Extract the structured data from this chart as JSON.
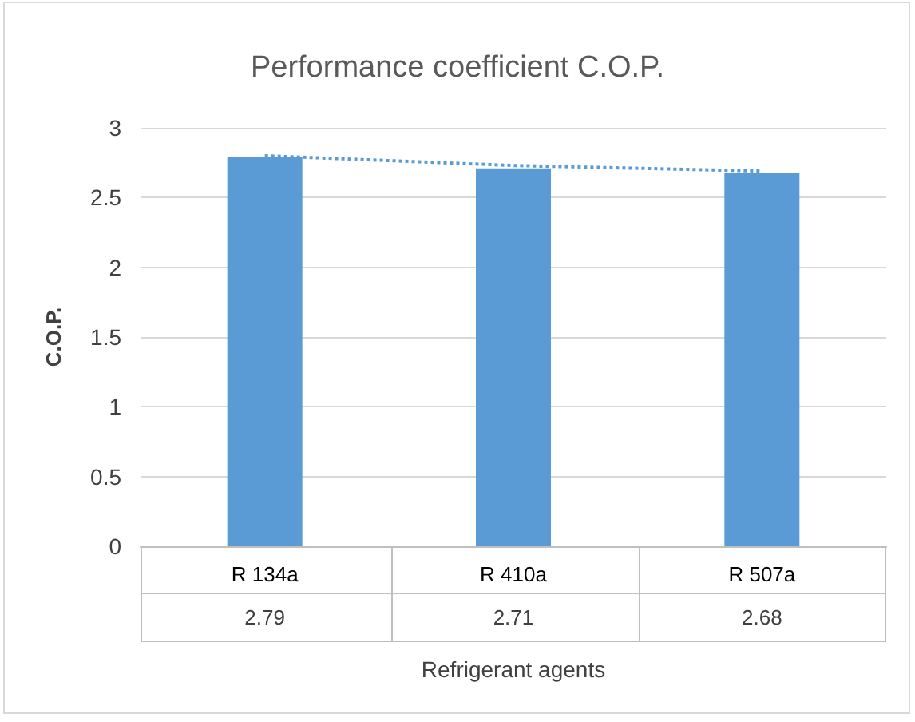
{
  "chart_data": {
    "type": "bar",
    "title": "Performance coefficient C.O.P.",
    "xlabel": "Refrigerant agents",
    "ylabel": "C.O.P.",
    "categories": [
      "R 134a",
      "R 410a",
      "R 507a"
    ],
    "series": [
      {
        "color": "#5b9bd5",
        "values": [
          2.79,
          2.71,
          2.68
        ],
        "value_labels": [
          "2.79",
          "2.71",
          "2.68"
        ]
      },
      {
        "type": "line",
        "color": "#5b9bd5",
        "values": [
          2.8,
          2.73,
          2.69
        ],
        "line_style": "dotted",
        "marker": "none"
      }
    ],
    "ylim": [
      0,
      3
    ],
    "yticks": [
      0,
      0.5,
      1,
      1.5,
      2,
      2.5,
      3
    ],
    "grid": "y"
  }
}
